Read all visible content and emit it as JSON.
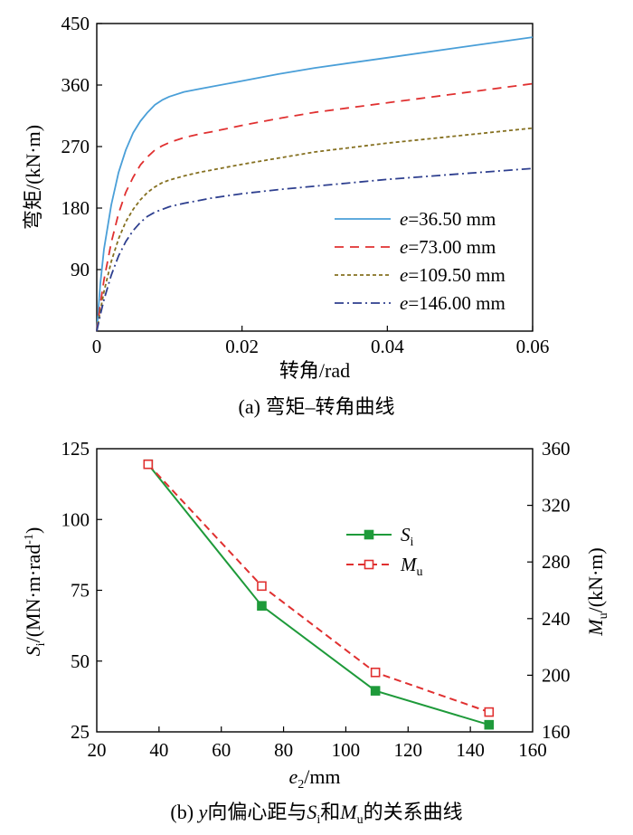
{
  "chart_data": [
    {
      "type": "line",
      "xlabel": "转角/rad",
      "ylabel": "弯矩/(kN·m)",
      "caption": "(a) 弯矩–转角曲线",
      "xlim": [
        0,
        0.06
      ],
      "ylim": [
        0,
        450
      ],
      "xticks": [
        "0",
        "0.02",
        "0.04",
        "0.06"
      ],
      "yticks": [
        "90",
        "180",
        "270",
        "360",
        "450"
      ],
      "grid": false,
      "legend_position": "bottom-right",
      "series": [
        {
          "name": "e=36.50 mm",
          "legend_var": "e",
          "legend_value": "=36.50 mm",
          "color": "#4a9fd8",
          "dash": "solid",
          "x": [
            0,
            0.0005,
            0.001,
            0.002,
            0.003,
            0.004,
            0.005,
            0.006,
            0.007,
            0.008,
            0.009,
            0.01,
            0.012,
            0.014,
            0.016,
            0.02,
            0.025,
            0.03,
            0.04,
            0.05,
            0.06
          ],
          "y": [
            0,
            70,
            120,
            185,
            232,
            265,
            290,
            307,
            320,
            331,
            338,
            343,
            350,
            354,
            358,
            366,
            376,
            385,
            400,
            415,
            430
          ]
        },
        {
          "name": "e=73.00 mm",
          "legend_var": "e",
          "legend_value": "=73.00 mm",
          "color": "#e03030",
          "dash": "10,7",
          "x": [
            0,
            0.0005,
            0.001,
            0.002,
            0.003,
            0.004,
            0.005,
            0.006,
            0.007,
            0.008,
            0.009,
            0.01,
            0.012,
            0.014,
            0.016,
            0.02,
            0.025,
            0.03,
            0.04,
            0.05,
            0.06
          ],
          "y": [
            0,
            40,
            75,
            130,
            172,
            203,
            225,
            243,
            255,
            265,
            271,
            276,
            283,
            288,
            292,
            301,
            311,
            320,
            334,
            348,
            362
          ]
        },
        {
          "name": "e=109.50 mm",
          "legend_var": "e",
          "legend_value": "=109.50 mm",
          "color": "#857020",
          "dash": "4,3",
          "x": [
            0,
            0.0005,
            0.001,
            0.002,
            0.003,
            0.004,
            0.005,
            0.006,
            0.007,
            0.008,
            0.009,
            0.01,
            0.012,
            0.014,
            0.016,
            0.02,
            0.025,
            0.03,
            0.04,
            0.05,
            0.06
          ],
          "y": [
            0,
            30,
            58,
            102,
            135,
            160,
            178,
            192,
            203,
            211,
            217,
            221,
            227,
            232,
            236,
            244,
            253,
            262,
            275,
            286,
            297
          ]
        },
        {
          "name": "e=146.00 mm",
          "legend_var": "e",
          "legend_value": "=146.00 mm",
          "color": "#2e3f8f",
          "dash": "10,4,2,4",
          "x": [
            0,
            0.0005,
            0.001,
            0.002,
            0.003,
            0.004,
            0.005,
            0.006,
            0.007,
            0.008,
            0.009,
            0.01,
            0.012,
            0.014,
            0.016,
            0.02,
            0.025,
            0.03,
            0.04,
            0.05,
            0.06
          ],
          "y": [
            0,
            24,
            46,
            82,
            110,
            131,
            147,
            159,
            168,
            174,
            178,
            182,
            187,
            191,
            195,
            201,
            207,
            212,
            222,
            230,
            238
          ]
        }
      ]
    },
    {
      "type": "line",
      "xlabel": "e2/mm",
      "xlabel_var": "e",
      "xlabel_sub": "2",
      "xlabel_rest": "/mm",
      "ylabel_left": "Si/(MN·m·rad-1)",
      "ylabel_left_var": "S",
      "ylabel_left_sub": "i",
      "ylabel_left_rest": "/(MN·m·rad",
      "ylabel_left_sup": "-1",
      "ylabel_left_end": ")",
      "ylabel_right": "Mu/(kN·m)",
      "ylabel_right_var": "M",
      "ylabel_right_sub": "u",
      "ylabel_right_rest": "/(kN·m)",
      "caption": "(b) y向偏心距与Si和Mu的关系曲线",
      "caption_parts": [
        "(b) ",
        "y",
        "向偏心距与",
        "S",
        "i",
        "和",
        "M",
        "u",
        "的关系曲线"
      ],
      "xlim": [
        20,
        160
      ],
      "ylim_left": [
        25,
        125
      ],
      "ylim_right": [
        160,
        360
      ],
      "xticks": [
        "20",
        "40",
        "60",
        "80",
        "100",
        "120",
        "140",
        "160"
      ],
      "yticks_left": [
        "25",
        "50",
        "75",
        "100",
        "125"
      ],
      "yticks_right": [
        "160",
        "200",
        "240",
        "280",
        "320",
        "360"
      ],
      "grid": false,
      "legend_position": "center-right",
      "series": [
        {
          "name": "Si",
          "legend_var": "S",
          "legend_sub": "i",
          "axis": "left",
          "color": "#1e9a3a",
          "marker": "filled-square",
          "x": [
            36.5,
            73,
            109.5,
            146
          ],
          "y": [
            119.5,
            69.5,
            39.5,
            27.5
          ]
        },
        {
          "name": "Mu",
          "legend_var": "M",
          "legend_sub": "u",
          "axis": "right",
          "color": "#e03030",
          "marker": "open-square",
          "dash": "8,5",
          "x": [
            36.5,
            73,
            109.5,
            146
          ],
          "y": [
            349,
            263,
            202,
            174
          ]
        }
      ]
    }
  ]
}
